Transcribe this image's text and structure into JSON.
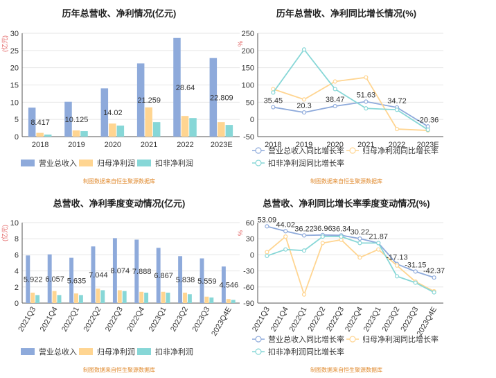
{
  "source_note": "制图数据来自恒生聚源数据库",
  "unit_label": "(亿元)",
  "pct_label": "%",
  "colors": {
    "revenue": "#8eaadb",
    "net_profit": "#ffd591",
    "deducted_profit": "#87d7d7",
    "revenue_line": "#8eaadb",
    "net_line": "#ffd591",
    "deducted_line": "#87d7d7",
    "note": "#e08a2e",
    "axis_label": "#e05a5a"
  },
  "chart_data": [
    {
      "type": "bar",
      "title": "历年总营收、净利情况(亿元)",
      "ylabel": "(亿元)",
      "ylim": [
        0,
        30
      ],
      "yticks": [
        0,
        5,
        10,
        15,
        20,
        25,
        30
      ],
      "categories": [
        "2018",
        "2019",
        "2020",
        "2021",
        "2022",
        "2023E"
      ],
      "series": [
        {
          "name": "营业总收入",
          "values": [
            8.417,
            10.125,
            14.02,
            21.259,
            28.64,
            22.809
          ]
        },
        {
          "name": "归母净利润",
          "values": [
            1.1,
            1.8,
            3.8,
            8.5,
            6.0,
            4.2
          ]
        },
        {
          "name": "扣非净利润",
          "values": [
            0.6,
            1.6,
            3.2,
            4.2,
            5.4,
            3.4
          ]
        }
      ],
      "data_labels": [
        "8.417",
        "10.125",
        "14.02",
        "21.259",
        "28.64",
        "22.809"
      ],
      "legend": "bottom-left"
    },
    {
      "type": "line",
      "title": "历年总营收、净利同比增长情况(%)",
      "ylabel": "%",
      "ylim": [
        -50,
        250
      ],
      "yticks": [
        -50,
        0,
        50,
        100,
        150,
        200,
        250
      ],
      "categories": [
        "2018",
        "2019",
        "2020",
        "2021",
        "2022",
        "2023E"
      ],
      "series": [
        {
          "name": "营业总收入同比增长率",
          "values": [
            35.45,
            20.3,
            38.47,
            51.63,
            34.72,
            -20.36
          ]
        },
        {
          "name": "归母净利润同比增长率",
          "values": [
            88,
            58,
            110,
            122,
            -28,
            -32
          ]
        },
        {
          "name": "扣非净利润同比增长率",
          "values": [
            78,
            203,
            88,
            32,
            28,
            -30
          ]
        }
      ],
      "data_labels": [
        "35.45",
        "20.3",
        "38.47",
        "51.63",
        "34.72",
        "-20.36"
      ],
      "legend": "bottom-left"
    },
    {
      "type": "bar",
      "title": "总营收、净利季度变动情况(亿元)",
      "ylabel": "(亿元)",
      "ylim": [
        0,
        10
      ],
      "yticks": [
        0,
        2,
        4,
        6,
        8,
        10
      ],
      "categories": [
        "2021Q3",
        "2021Q4",
        "2022Q1",
        "2022Q2",
        "2022Q3",
        "2022Q4",
        "2023Q1",
        "2023Q2",
        "2023Q3",
        "2023Q4E"
      ],
      "series": [
        {
          "name": "营业总收入",
          "values": [
            5.922,
            6.057,
            5.635,
            7.044,
            8.074,
            7.888,
            6.867,
            5.838,
            5.559,
            4.546
          ]
        },
        {
          "name": "归母净利润",
          "values": [
            1.3,
            1.5,
            1.2,
            1.8,
            1.6,
            1.4,
            1.4,
            1.3,
            0.8,
            0.5
          ]
        },
        {
          "name": "扣非净利润",
          "values": [
            1.0,
            1.0,
            1.0,
            1.6,
            1.5,
            1.3,
            1.3,
            1.1,
            0.7,
            0.4
          ]
        }
      ],
      "data_labels": [
        "5.922",
        "6.057",
        "5.635",
        "7.044",
        "8.074",
        "7.888",
        "6.867",
        "5.838",
        "5.559",
        "4.546"
      ],
      "legend": "bottom-left"
    },
    {
      "type": "line",
      "title": "总营收、净利同比增长率季度变动情况(%)",
      "ylabel": "%",
      "ylim": [
        -90,
        60
      ],
      "yticks": [
        -90,
        -60,
        -30,
        0,
        30,
        60
      ],
      "categories": [
        "2021Q3",
        "2021Q4",
        "2022Q1",
        "2022Q2",
        "2022Q3",
        "2022Q4",
        "2023Q1",
        "2023Q2",
        "2023Q3",
        "2023Q4E"
      ],
      "series": [
        {
          "name": "营业总收入同比增长率",
          "values": [
            53.09,
            44.02,
            36.22,
            36.96,
            36.34,
            30.22,
            21.87,
            -17.13,
            -31.15,
            -42.37
          ]
        },
        {
          "name": "归母净利润同比增长率",
          "values": [
            5,
            34,
            -74,
            22,
            28,
            -5,
            10,
            -20,
            -50,
            -68
          ]
        },
        {
          "name": "扣非净利润同比增长率",
          "values": [
            -2,
            10,
            8,
            34,
            34,
            22,
            22,
            -40,
            -52,
            -70
          ]
        }
      ],
      "data_labels": [
        "53.09",
        "44.02",
        "36.22",
        "36.96",
        "36.34",
        "30.22",
        "21.87",
        "-17.13",
        "-31.15",
        "-42.37"
      ],
      "legend": "bottom-left"
    }
  ]
}
